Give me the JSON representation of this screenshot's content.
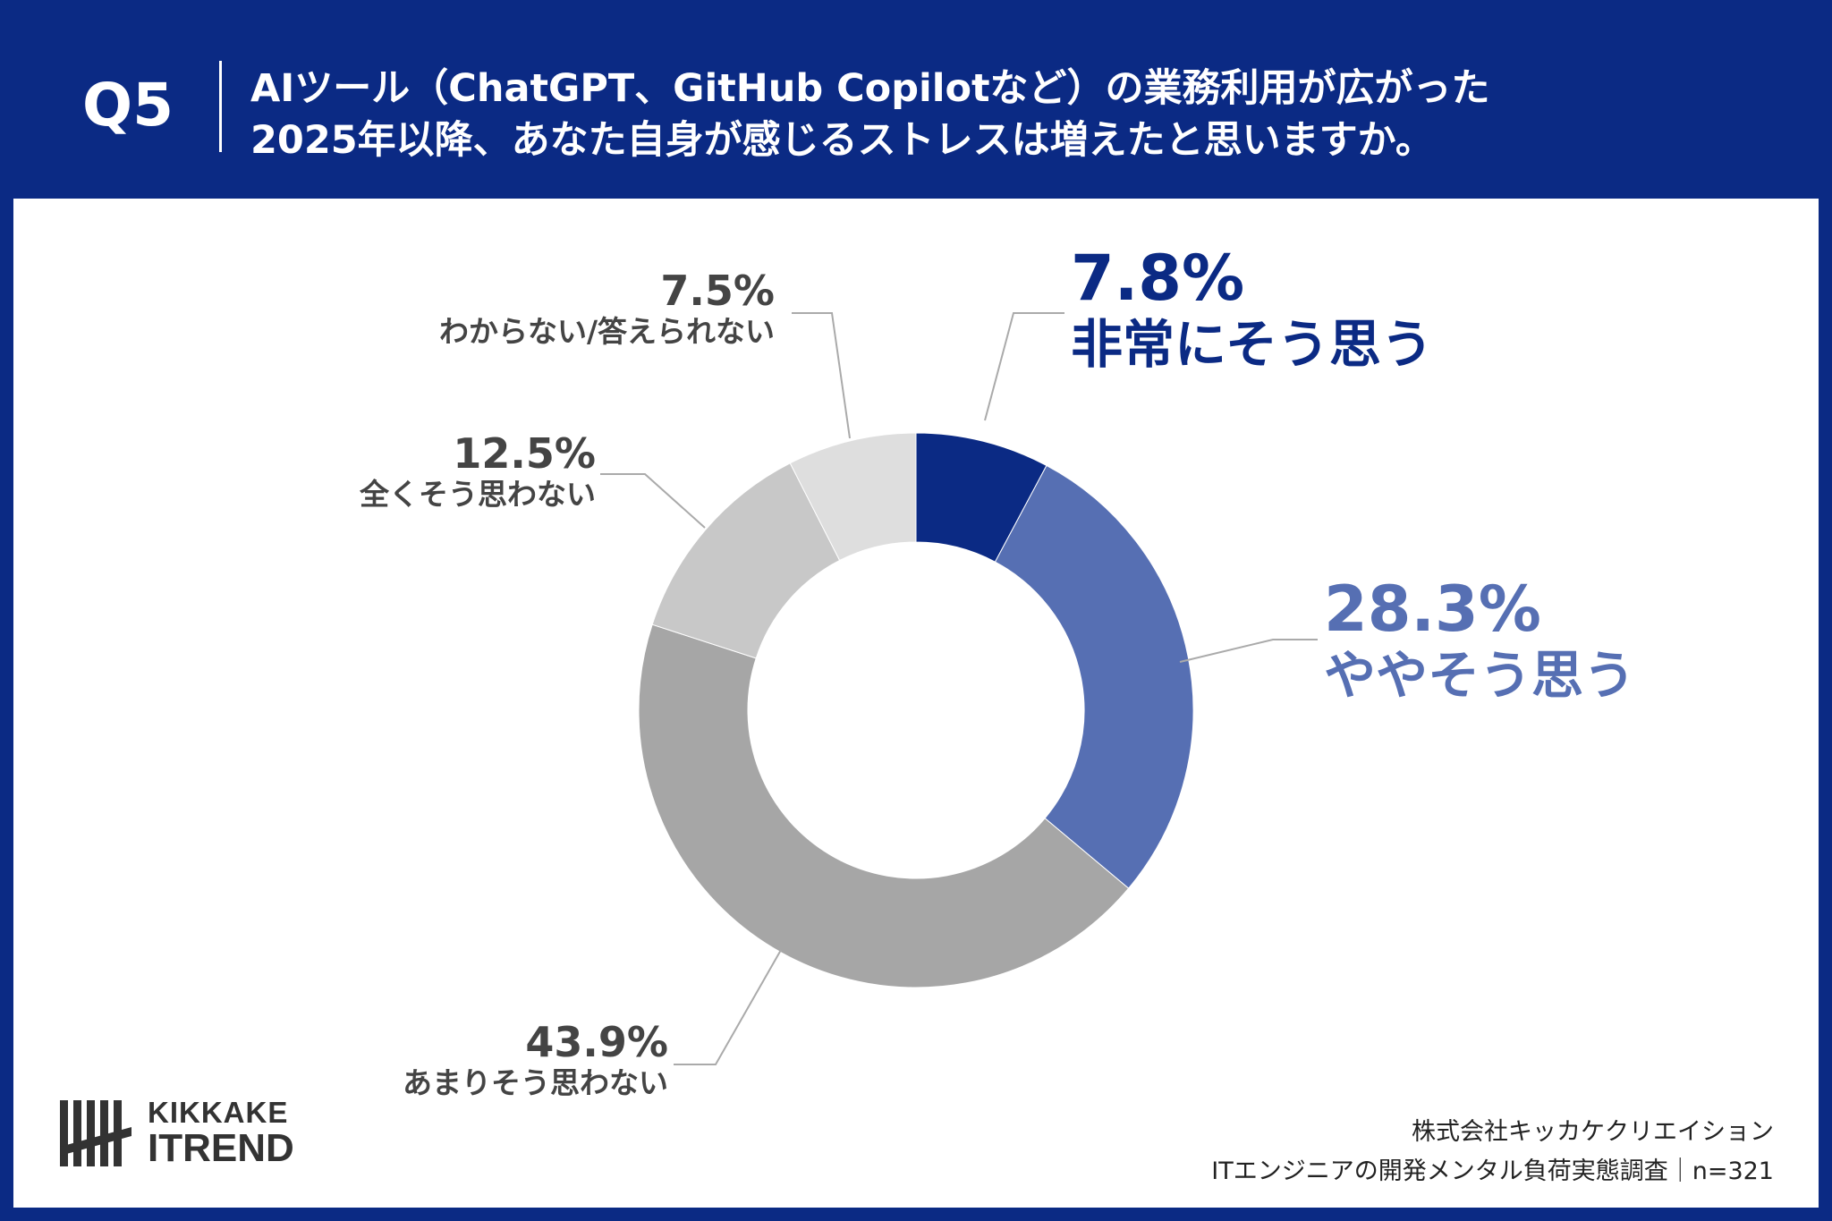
{
  "header": {
    "q_number": "Q5",
    "question_lines": [
      "AIツール（ChatGPT、GitHub Copilotなど）の業務利用が広がった",
      "2025年以降、あなた自身が感じるストレスは増えたと思いますか。"
    ]
  },
  "colors": {
    "header_bg": "#0b2a84",
    "slice_strong": "#0b2a84",
    "slice_somewhat": "#566fb3",
    "slice_notmuch": "#a6a6a6",
    "slice_notatall": "#c8c8c8",
    "slice_unknown": "#dedede",
    "gray_text": "#444444",
    "leader": "#aaaaaa"
  },
  "chart_data": {
    "type": "pie",
    "variant": "donut",
    "start_angle_deg": 0,
    "direction": "clockwise",
    "slices": [
      {
        "label": "非常にそう思う",
        "value": 7.8,
        "value_label": "7.8%",
        "color": "#0b2a84"
      },
      {
        "label": "ややそう思う",
        "value": 28.3,
        "value_label": "28.3%",
        "color": "#566fb3"
      },
      {
        "label": "あまりそう思わない",
        "value": 43.9,
        "value_label": "43.9%",
        "color": "#a6a6a6"
      },
      {
        "label": "全くそう思わない",
        "value": 12.5,
        "value_label": "12.5%",
        "color": "#c8c8c8"
      },
      {
        "label": "わからない/答えられない",
        "value": 7.5,
        "value_label": "7.5%",
        "color": "#dedede"
      }
    ]
  },
  "logo": {
    "line1": "KIKKAKE",
    "line2": "ITREND"
  },
  "credit": {
    "line1": "株式会社キッカケクリエイション",
    "line2": "ITエンジニアの開発メンタル負荷実態調査｜n=321"
  }
}
